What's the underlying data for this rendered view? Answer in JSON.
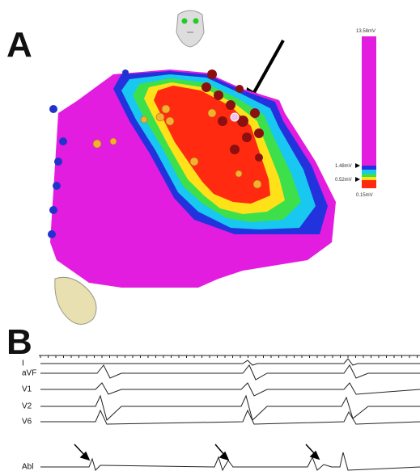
{
  "panel_a": {
    "label": "A",
    "scale": {
      "top": "13.58mV",
      "marks": [
        "1.48mV",
        "0.52mV"
      ],
      "bottom": "0.15mV"
    }
  },
  "panel_b": {
    "label": "B",
    "leads": [
      "I",
      "aVF",
      "V1",
      "V2",
      "V6",
      "Abl"
    ]
  }
}
